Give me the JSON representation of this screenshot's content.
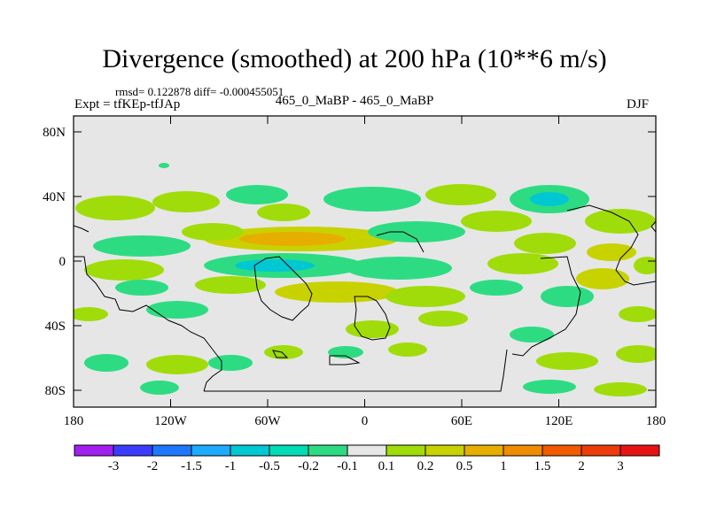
{
  "header": {
    "title": "Divergence (smoothed) at 200 hPa (10**6 m/s)",
    "stats": "rmsd= 0.122878 diff= -0.000455051",
    "experiment": "Expt = tfKEp-tfJAp",
    "comparison": "465_0_MaBP - 465_0_MaBP",
    "season": "DJF"
  },
  "map": {
    "lat_ticks": [
      "80N",
      "40N",
      "0",
      "40S",
      "80S"
    ],
    "lon_ticks": [
      "180",
      "120W",
      "60W",
      "0",
      "60E",
      "120E",
      "180"
    ]
  },
  "colorbar": {
    "labels": [
      "-3",
      "-2",
      "-1.5",
      "-1",
      "-0.5",
      "-0.2",
      "-0.1",
      "0.1",
      "0.2",
      "0.5",
      "1",
      "1.5",
      "2",
      "3"
    ],
    "colors": [
      "#a020f0",
      "#3c3cff",
      "#1e78ff",
      "#1eaaff",
      "#00c8d2",
      "#00dcb4",
      "#2ddc82",
      "#e6e6e6",
      "#a0dc0a",
      "#c8d200",
      "#e6af00",
      "#f08c00",
      "#f05a00",
      "#eb3c0a",
      "#e61414"
    ]
  },
  "colors": {
    "background": "#e6e6e6",
    "coastline": "#000000"
  }
}
